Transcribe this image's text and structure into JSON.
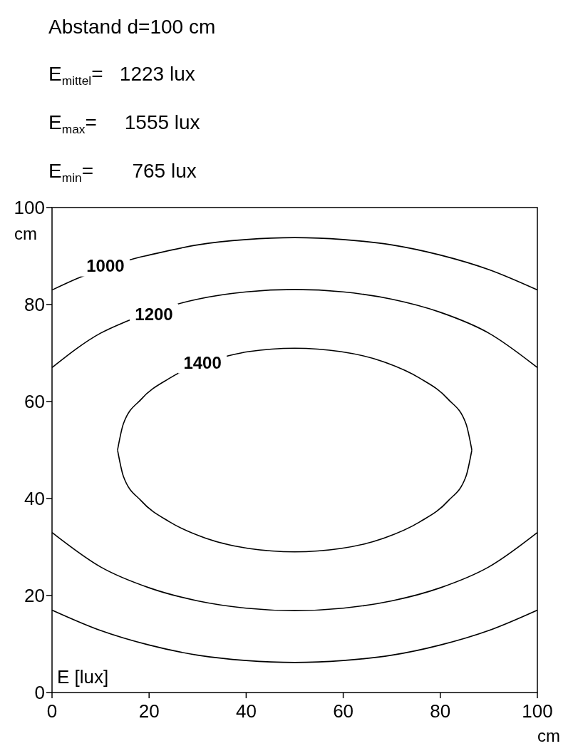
{
  "chart_data": {
    "type": "line",
    "title": "Abstand d=100 cm",
    "annotations": [
      "E$_{mittel}$=   1223 lux",
      "E$_{max}$=     1555 lux",
      "E$_{min}$=       765 lux",
      {
        "text": "1000",
        "x": 11,
        "y": 88
      },
      {
        "text": "1200",
        "x": 21,
        "y": 78
      },
      {
        "text": "1400",
        "x": 31,
        "y": 68
      }
    ],
    "legend_title": "E [lux]",
    "xlabel": "cm",
    "ylabel": "cm",
    "xlim": [
      0,
      100
    ],
    "ylim": [
      0,
      100
    ],
    "xticks": [
      0,
      20,
      40,
      60,
      80,
      100
    ],
    "yticks": [
      0,
      20,
      40,
      60,
      80,
      100
    ],
    "grid": false,
    "line_style": "solid",
    "marker": "none",
    "series": [
      {
        "color": "#000000",
        "x": [
          0,
          5,
          17,
          20,
          30,
          40,
          50,
          60,
          70,
          80,
          90,
          100,
          null,
          0,
          10,
          20,
          30,
          40,
          50,
          60,
          70,
          80,
          90,
          100
        ],
        "values": [
          83.0,
          85.3,
          89.5,
          90.2,
          92.3,
          93.4,
          93.8,
          93.4,
          92.3,
          90.2,
          87.2,
          83.0,
          null,
          17.0,
          12.8,
          9.8,
          7.7,
          6.6,
          6.2,
          6.6,
          7.7,
          9.8,
          12.8,
          17.0
        ]
      },
      {
        "color": "#000000",
        "x": [
          0,
          10,
          15,
          27,
          30,
          40,
          50,
          60,
          70,
          80,
          90,
          100,
          null,
          0,
          10,
          20,
          30,
          40,
          50,
          60,
          70,
          80,
          90,
          100
        ],
        "values": [
          67.0,
          74.1,
          76.4,
          80.4,
          81.1,
          82.6,
          83.1,
          82.6,
          81.1,
          78.4,
          74.1,
          67.0,
          null,
          33.0,
          25.9,
          21.6,
          18.9,
          17.4,
          16.9,
          17.4,
          18.9,
          21.6,
          25.9,
          33.0
        ]
      },
      {
        "color": "#000000",
        "x": [
          13.5,
          14.7,
          18.4,
          24.2,
          37,
          40.5,
          50,
          59.5,
          68.3,
          75.8,
          81.6,
          85.3,
          86.5,
          null,
          13.5,
          14.7,
          18.4,
          24.2,
          31.7,
          40.5,
          50,
          59.5,
          68.3,
          75.8,
          81.6,
          85.3,
          86.5
        ],
        "values": [
          50,
          55.4,
          60.5,
          64.8,
          69.6,
          70.3,
          71,
          70.3,
          68.2,
          64.8,
          60.5,
          55.4,
          50,
          null,
          50,
          44.6,
          39.5,
          35.2,
          31.8,
          29.7,
          29,
          29.7,
          31.8,
          35.2,
          39.5,
          44.6,
          50
        ]
      }
    ]
  }
}
